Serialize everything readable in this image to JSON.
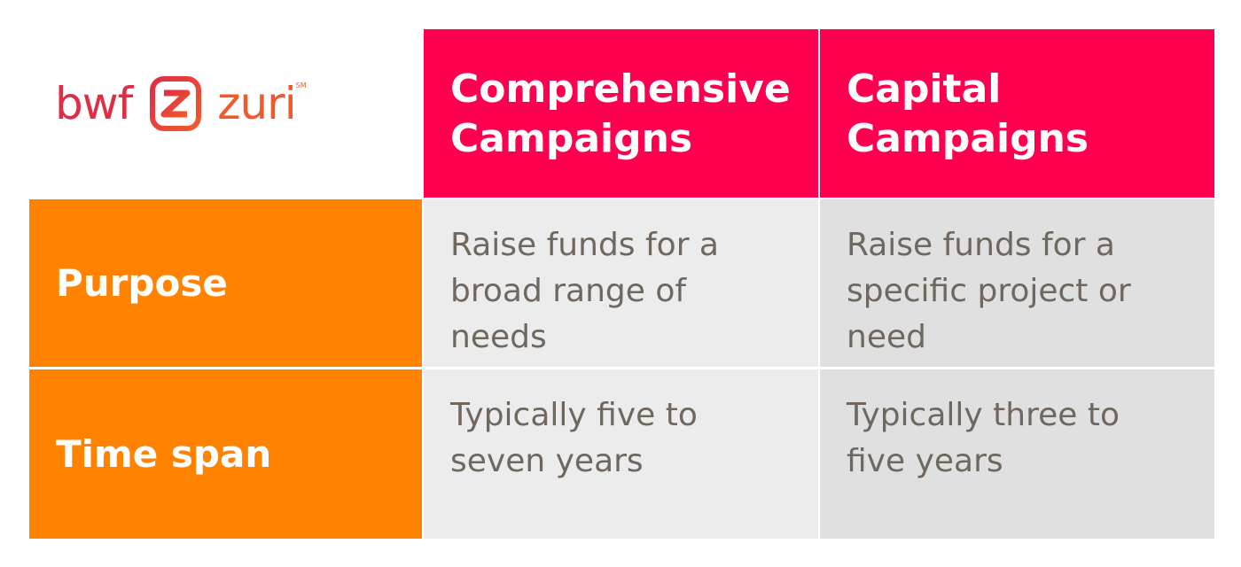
{
  "logo": {
    "text_left": "bwf",
    "text_right": "zuri",
    "trademark": "SM",
    "mark_icon": "z-square-icon",
    "color_left": "#e02d46",
    "color_right": "#f05a2a"
  },
  "colors": {
    "header_bg": "#ff0050",
    "row_header_bg": "#ff8200",
    "col1_bg": "#ececec",
    "col2_bg": "#e0e0e0",
    "body_text": "#70685f"
  },
  "table": {
    "columns": [
      {
        "lines": [
          "Comprehensive",
          "Campaigns"
        ]
      },
      {
        "lines": [
          "Capital",
          "Campaigns"
        ]
      }
    ],
    "rows": [
      {
        "label": "Purpose",
        "cells": [
          {
            "lines": [
              "Raise funds for a",
              "broad range of",
              "needs"
            ]
          },
          {
            "lines": [
              "Raise funds for a",
              "specific project or",
              "need"
            ]
          }
        ]
      },
      {
        "label": "Time span",
        "cells": [
          {
            "lines": [
              "Typically five to",
              "seven years"
            ]
          },
          {
            "lines": [
              "Typically three to",
              "five years"
            ]
          }
        ]
      }
    ]
  }
}
